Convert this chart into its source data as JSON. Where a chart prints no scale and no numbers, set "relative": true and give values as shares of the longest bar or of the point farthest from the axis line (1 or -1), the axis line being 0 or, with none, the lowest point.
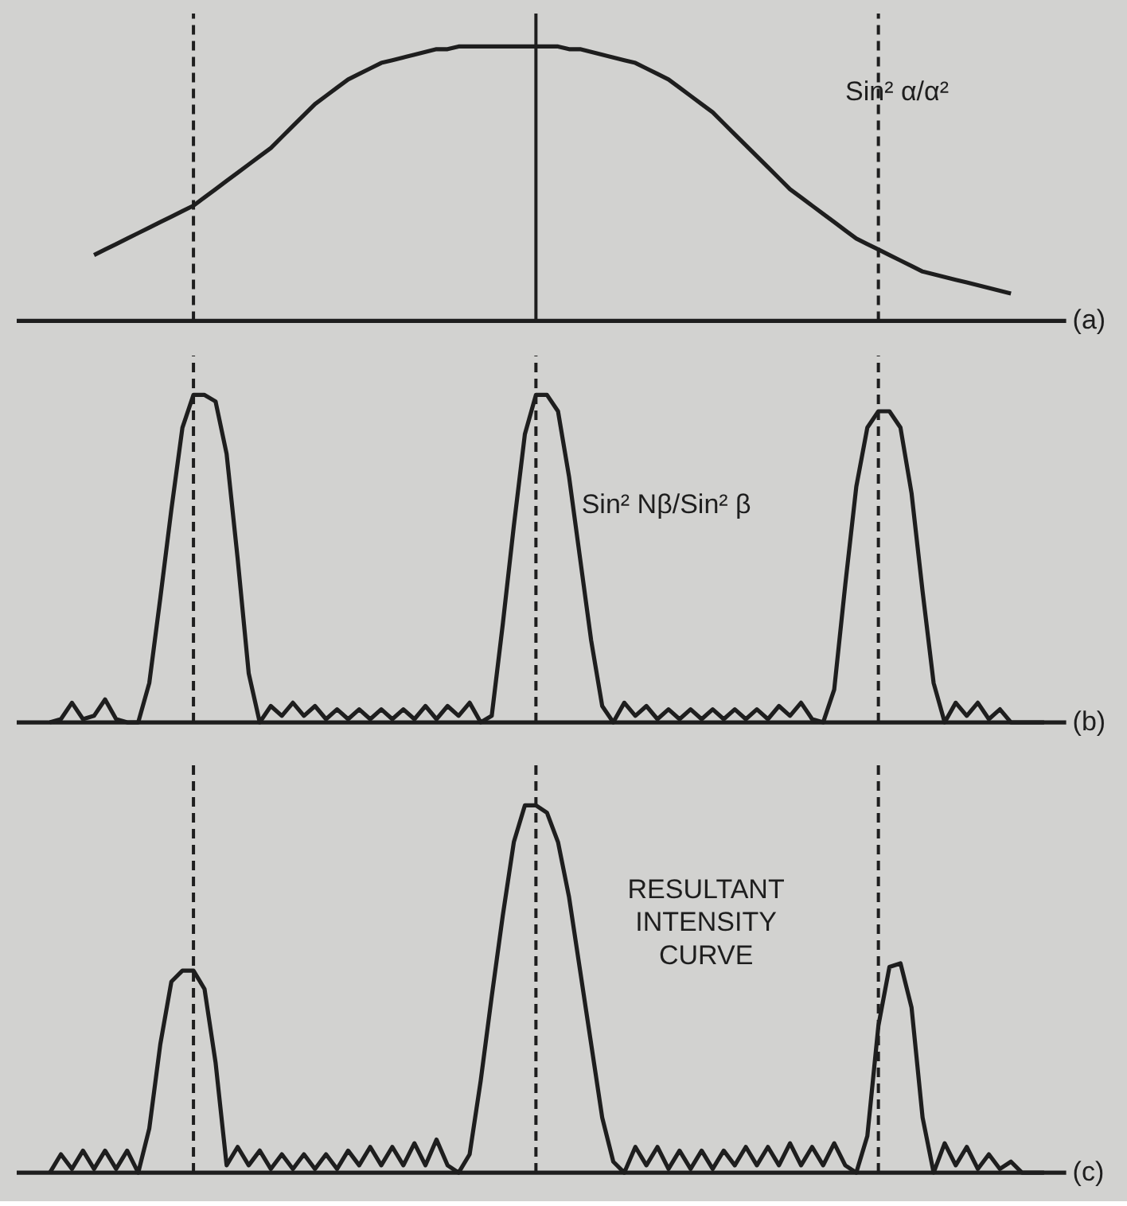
{
  "chart_data": [
    {
      "type": "line",
      "relative": true,
      "grid": "x",
      "line_style": "solid",
      "marker": "none",
      "categories": [
        null,
        null,
        null,
        null,
        null,
        null,
        null,
        null,
        null,
        null,
        null,
        null,
        null,
        null,
        null,
        null,
        null,
        null,
        null,
        null,
        null,
        null,
        null,
        null,
        null,
        null,
        null,
        null,
        null,
        null,
        null,
        null,
        null,
        null,
        null,
        null,
        null,
        null,
        null,
        null,
        null,
        null,
        null,
        null,
        null,
        null,
        null,
        null,
        null,
        null,
        null,
        null,
        null,
        null,
        null,
        null,
        null,
        null,
        null,
        null,
        null,
        null,
        null,
        null,
        null,
        null,
        null,
        null,
        null,
        null,
        null,
        null,
        null,
        null,
        null,
        null,
        null,
        null,
        null,
        null,
        null,
        null,
        null,
        null,
        null,
        null,
        null,
        null,
        null,
        null,
        null
      ],
      "series": [
        {
          "name": "Sin² α/α²",
          "color": "#1e1e1e",
          "values": [
            null,
            null,
            null,
            null,
            0.24,
            0.26,
            0.28,
            0.3,
            0.32,
            0.34,
            0.36,
            0.38,
            0.4,
            0.42,
            0.45,
            0.48,
            0.51,
            0.54,
            0.57,
            0.6,
            0.63,
            0.67,
            0.71,
            0.75,
            0.79,
            0.82,
            0.85,
            0.88,
            0.9,
            0.92,
            0.94,
            0.95,
            0.96,
            0.97,
            0.98,
            0.99,
            0.99,
            1.0,
            1.0,
            1.0,
            1.0,
            1.0,
            1.0,
            1.0,
            1.0,
            1.0,
            1.0,
            0.99,
            0.99,
            0.98,
            0.97,
            0.96,
            0.95,
            0.94,
            0.92,
            0.9,
            0.88,
            0.85,
            0.82,
            0.79,
            0.76,
            0.72,
            0.68,
            0.64,
            0.6,
            0.56,
            0.52,
            0.48,
            0.45,
            0.42,
            0.39,
            0.36,
            0.33,
            0.3,
            0.28,
            0.26,
            0.24,
            0.22,
            0.2,
            0.18,
            0.17,
            0.16,
            0.15,
            0.14,
            0.13,
            0.12,
            0.11,
            0.1,
            null,
            null,
            null
          ]
        }
      ],
      "annotations": [
        "(a)"
      ]
    },
    {
      "type": "line",
      "relative": true,
      "grid": "x",
      "line_style": "solid",
      "marker": "none",
      "categories": [
        null,
        null,
        null,
        null,
        null,
        null,
        null,
        null,
        null,
        null,
        null,
        null,
        null,
        null,
        null,
        null,
        null,
        null,
        null,
        null,
        null,
        null,
        null,
        null,
        null,
        null,
        null,
        null,
        null,
        null,
        null,
        null,
        null,
        null,
        null,
        null,
        null,
        null,
        null,
        null,
        null,
        null,
        null,
        null,
        null,
        null,
        null,
        null,
        null,
        null,
        null,
        null,
        null,
        null,
        null,
        null,
        null,
        null,
        null,
        null,
        null,
        null,
        null,
        null,
        null,
        null,
        null,
        null,
        null,
        null,
        null,
        null,
        null,
        null,
        null,
        null,
        null,
        null,
        null,
        null,
        null,
        null,
        null,
        null,
        null,
        null,
        null,
        null,
        null,
        null,
        null
      ],
      "series": [
        {
          "name": "Sin² Nβ/Sin² β",
          "color": "#1e1e1e",
          "values": [
            0,
            0.01,
            0.06,
            0.01,
            0.02,
            0.07,
            0.01,
            0,
            0,
            0.12,
            0.38,
            0.65,
            0.9,
            1.0,
            1.0,
            0.98,
            0.82,
            0.5,
            0.15,
            0,
            0.05,
            0.02,
            0.06,
            0.02,
            0.05,
            0.01,
            0.04,
            0.01,
            0.04,
            0.01,
            0.04,
            0.01,
            0.04,
            0.01,
            0.05,
            0.01,
            0.05,
            0.02,
            0.06,
            0,
            0.02,
            0.3,
            0.6,
            0.88,
            1.0,
            1.0,
            0.95,
            0.75,
            0.5,
            0.25,
            0.05,
            0,
            0.06,
            0.02,
            0.05,
            0.01,
            0.04,
            0.01,
            0.04,
            0.01,
            0.04,
            0.01,
            0.04,
            0.01,
            0.04,
            0.01,
            0.05,
            0.02,
            0.06,
            0.01,
            0,
            0.1,
            0.42,
            0.72,
            0.9,
            0.95,
            0.95,
            0.9,
            0.7,
            0.4,
            0.12,
            0,
            0.06,
            0.02,
            0.06,
            0.01,
            0.04,
            0,
            0,
            0,
            0
          ]
        }
      ],
      "annotations": [
        "(b)"
      ]
    },
    {
      "type": "line",
      "relative": true,
      "grid": "x",
      "line_style": "solid",
      "marker": "none",
      "categories": [
        null,
        null,
        null,
        null,
        null,
        null,
        null,
        null,
        null,
        null,
        null,
        null,
        null,
        null,
        null,
        null,
        null,
        null,
        null,
        null,
        null,
        null,
        null,
        null,
        null,
        null,
        null,
        null,
        null,
        null,
        null,
        null,
        null,
        null,
        null,
        null,
        null,
        null,
        null,
        null,
        null,
        null,
        null,
        null,
        null,
        null,
        null,
        null,
        null,
        null,
        null,
        null,
        null,
        null,
        null,
        null,
        null,
        null,
        null,
        null,
        null,
        null,
        null,
        null,
        null,
        null,
        null,
        null,
        null,
        null,
        null,
        null,
        null,
        null,
        null,
        null,
        null,
        null,
        null,
        null,
        null,
        null,
        null,
        null,
        null,
        null,
        null,
        null,
        null,
        null,
        null
      ],
      "series": [
        {
          "name": "RESULTANT INTENSITY CURVE",
          "color": "#1e1e1e",
          "values": [
            0,
            0.05,
            0.01,
            0.06,
            0.01,
            0.06,
            0.01,
            0.06,
            0,
            0.12,
            0.35,
            0.52,
            0.55,
            0.55,
            0.5,
            0.3,
            0.02,
            0.07,
            0.02,
            0.06,
            0.01,
            0.05,
            0.01,
            0.05,
            0.01,
            0.05,
            0.01,
            0.06,
            0.02,
            0.07,
            0.02,
            0.07,
            0.02,
            0.08,
            0.02,
            0.09,
            0.02,
            0,
            0.05,
            0.25,
            0.48,
            0.7,
            0.9,
            1.0,
            1.0,
            0.98,
            0.9,
            0.75,
            0.55,
            0.35,
            0.15,
            0.03,
            0,
            0.07,
            0.02,
            0.07,
            0.01,
            0.06,
            0.01,
            0.06,
            0.01,
            0.06,
            0.02,
            0.07,
            0.02,
            0.07,
            0.02,
            0.08,
            0.02,
            0.07,
            0.02,
            0.08,
            0.02,
            0,
            0.1,
            0.4,
            0.56,
            0.57,
            0.45,
            0.15,
            0,
            0.08,
            0.02,
            0.07,
            0.01,
            0.05,
            0.01,
            0.03,
            0,
            0,
            0
          ]
        }
      ],
      "annotations": [
        "(c)"
      ]
    }
  ]
}
